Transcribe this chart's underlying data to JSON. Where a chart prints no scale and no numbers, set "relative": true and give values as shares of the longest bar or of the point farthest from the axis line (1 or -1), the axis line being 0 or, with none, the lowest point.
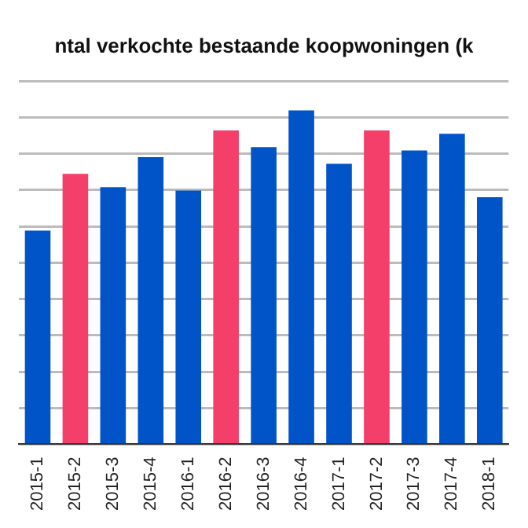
{
  "chart_data": {
    "type": "bar",
    "title": "ntal verkochte bestaande koopwoningen (k",
    "categories": [
      "2015-1",
      "2015-2",
      "2015-3",
      "2015-4",
      "2016-1",
      "2016-2",
      "2016-3",
      "2016-4",
      "2017-1",
      "2017-2",
      "2017-3",
      "2017-4",
      "2018-1"
    ],
    "values": [
      0.64,
      0.81,
      0.77,
      0.86,
      0.76,
      0.94,
      0.89,
      1,
      0.84,
      0.94,
      0.88,
      0.93,
      0.74
    ],
    "colors": [
      "#0054c8",
      "#f43f6b",
      "#0054c8",
      "#0054c8",
      "#0054c8",
      "#f43f6b",
      "#0054c8",
      "#0054c8",
      "#0054c8",
      "#f43f6b",
      "#0054c8",
      "#0054c8",
      "#0054c8"
    ],
    "relative": true,
    "grid": "y"
  }
}
